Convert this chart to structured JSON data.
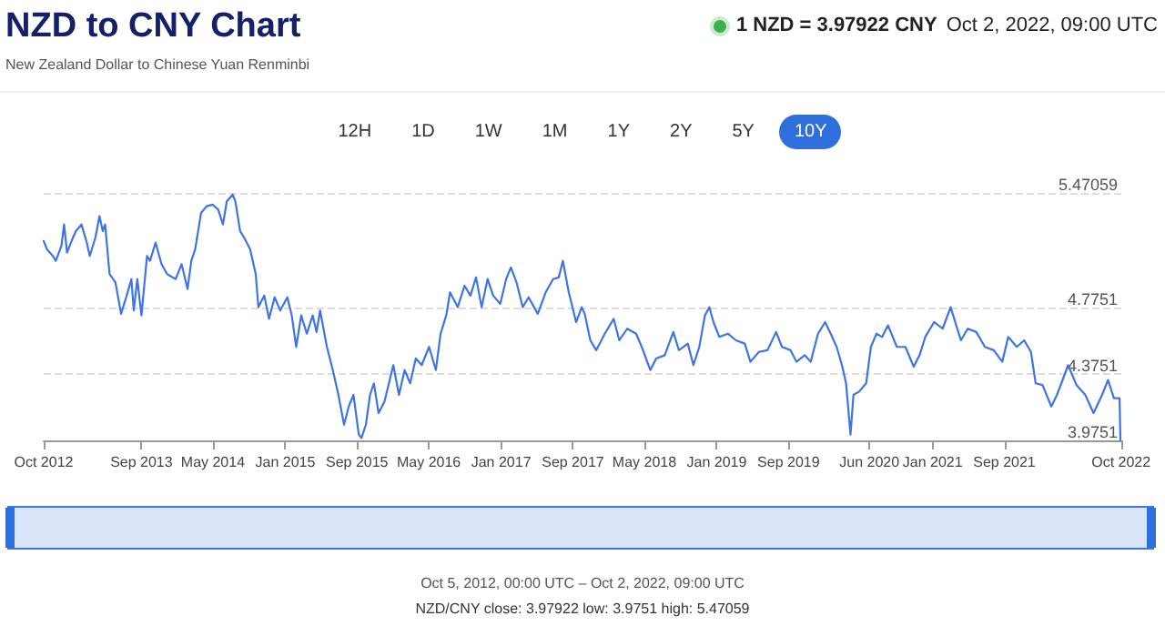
{
  "chart_data": {
    "type": "line",
    "title": "NZD to CNY Chart",
    "subtitle": "New Zealand Dollar to Chinese Yuan Renminbi",
    "annotations": [
      "1 NZD = 3.97922 CNY",
      "Oct 2, 2022, 09:00 UTC",
      "12H",
      "1D",
      "1W",
      "1M",
      "1Y",
      "2Y",
      "5Y",
      "10Y",
      "Oct 5, 2012, 00:00 UTC – Oct 2, 2022, 09:00 UTC",
      "NZD/CNY close: 3.97922 low: 3.9751 high: 5.47059"
    ],
    "x": [
      "2012-10-05",
      "2012-10-16",
      "2012-11-05",
      "2012-11-15",
      "2012-12-04",
      "2012-12-13",
      "2012-12-23",
      "2013-01-12",
      "2013-01-22",
      "2013-02-10",
      "2013-02-28",
      "2013-03-10",
      "2013-03-29",
      "2013-04-12",
      "2013-04-23",
      "2013-05-01",
      "2013-05-16",
      "2013-06-05",
      "2013-06-24",
      "2013-07-13",
      "2013-07-29",
      "2013-08-06",
      "2013-08-18",
      "2013-09-01",
      "2013-09-20",
      "2013-09-30",
      "2013-10-19",
      "2013-11-08",
      "2013-11-27",
      "2013-12-26",
      "2014-01-15",
      "2014-02-04",
      "2014-02-17",
      "2014-03-02",
      "2014-03-22",
      "2014-04-10",
      "2014-04-30",
      "2014-05-19",
      "2014-06-04",
      "2014-06-17",
      "2014-07-07",
      "2014-07-16",
      "2014-08-01",
      "2014-08-15",
      "2014-09-04",
      "2014-09-23",
      "2014-10-02",
      "2014-10-22",
      "2014-11-07",
      "2014-11-26",
      "2014-12-15",
      "2015-01-08",
      "2015-01-23",
      "2015-02-07",
      "2015-02-24",
      "2015-03-15",
      "2015-04-04",
      "2015-04-17",
      "2015-04-29",
      "2015-05-22",
      "2015-06-11",
      "2015-06-30",
      "2015-07-19",
      "2015-08-04",
      "2015-08-20",
      "2015-09-07",
      "2015-09-16",
      "2015-10-01",
      "2015-10-15",
      "2015-10-28",
      "2015-11-13",
      "2015-12-03",
      "2016-01-02",
      "2016-01-21",
      "2016-02-09",
      "2016-02-28",
      "2016-03-18",
      "2016-04-07",
      "2016-05-02",
      "2016-05-25",
      "2016-06-10",
      "2016-06-29",
      "2016-07-12",
      "2016-08-07",
      "2016-08-30",
      "2016-09-19",
      "2016-10-08",
      "2016-10-27",
      "2016-11-16",
      "2016-12-05",
      "2016-12-29",
      "2017-01-18",
      "2017-02-03",
      "2017-02-22",
      "2017-03-15",
      "2017-04-04",
      "2017-05-05",
      "2017-06-01",
      "2017-06-26",
      "2017-07-15",
      "2017-07-29",
      "2017-08-18",
      "2017-09-12",
      "2017-10-01",
      "2017-10-11",
      "2017-10-30",
      "2017-11-19",
      "2017-12-18",
      "2018-01-17",
      "2018-02-05",
      "2018-03-04",
      "2018-04-03",
      "2018-04-22",
      "2018-05-21",
      "2018-06-10",
      "2018-07-09",
      "2018-08-07",
      "2018-08-26",
      "2018-09-25",
      "2018-10-14",
      "2018-11-03",
      "2018-11-22",
      "2018-12-07",
      "2018-12-21",
      "2019-01-10",
      "2019-02-08",
      "2019-03-07",
      "2019-04-06",
      "2019-04-25",
      "2019-05-24",
      "2019-06-22",
      "2019-07-21",
      "2019-08-10",
      "2019-09-08",
      "2019-09-28",
      "2019-10-26",
      "2019-11-15",
      "2019-12-10",
      "2020-01-03",
      "2020-01-22",
      "2020-02-11",
      "2020-02-29",
      "2020-03-14",
      "2020-03-29",
      "2020-04-08",
      "2020-04-27",
      "2020-05-21",
      "2020-06-06",
      "2020-06-25",
      "2020-07-14",
      "2020-08-03",
      "2020-09-02",
      "2020-10-01",
      "2020-10-29",
      "2020-11-18",
      "2020-12-07",
      "2021-01-06",
      "2021-02-04",
      "2021-03-03",
      "2021-03-22",
      "2021-04-07",
      "2021-04-30",
      "2021-05-29",
      "2021-06-27",
      "2021-07-27",
      "2021-08-25",
      "2021-09-14",
      "2021-10-13",
      "2021-11-07",
      "2021-11-30",
      "2021-12-16",
      "2022-01-08",
      "2022-02-07",
      "2022-02-26",
      "2022-04-05",
      "2022-05-03",
      "2022-06-02",
      "2022-06-30",
      "2022-07-29",
      "2022-08-18",
      "2022-09-07",
      "2022-09-26",
      "2022-09-29",
      "2022-10-02"
    ],
    "series": [
      {
        "color": "#3f74e6",
        "values": [
          5.18,
          5.13,
          5.09,
          5.06,
          5.15,
          5.28,
          5.11,
          5.2,
          5.24,
          5.28,
          5.17,
          5.09,
          5.2,
          5.33,
          5.24,
          5.28,
          4.98,
          4.93,
          4.74,
          4.85,
          4.95,
          4.76,
          4.95,
          4.73,
          5.09,
          5.06,
          5.17,
          5.04,
          4.98,
          4.95,
          5.04,
          4.89,
          5.06,
          5.13,
          5.35,
          5.39,
          5.4,
          5.37,
          5.28,
          5.42,
          5.46,
          5.42,
          5.24,
          5.2,
          5.13,
          4.98,
          4.78,
          4.85,
          4.71,
          4.84,
          4.76,
          4.84,
          4.73,
          4.54,
          4.73,
          4.62,
          4.73,
          4.63,
          4.76,
          4.54,
          4.4,
          4.25,
          4.07,
          4.18,
          4.25,
          4.01,
          3.99,
          4.07,
          4.25,
          4.32,
          4.14,
          4.21,
          4.43,
          4.25,
          4.4,
          4.32,
          4.47,
          4.43,
          4.54,
          4.4,
          4.62,
          4.73,
          4.87,
          4.78,
          4.91,
          4.85,
          4.96,
          4.78,
          4.95,
          4.85,
          4.8,
          4.95,
          5.02,
          4.93,
          4.78,
          4.84,
          4.74,
          4.87,
          4.95,
          4.96,
          5.06,
          4.87,
          4.69,
          4.78,
          4.74,
          4.58,
          4.52,
          4.62,
          4.71,
          4.58,
          4.65,
          4.62,
          4.54,
          4.4,
          4.47,
          4.49,
          4.63,
          4.52,
          4.56,
          4.43,
          4.54,
          4.73,
          4.78,
          4.69,
          4.6,
          4.62,
          4.58,
          4.56,
          4.45,
          4.51,
          4.52,
          4.63,
          4.54,
          4.52,
          4.45,
          4.49,
          4.45,
          4.62,
          4.69,
          4.62,
          4.54,
          4.43,
          4.32,
          4.01,
          4.25,
          4.27,
          4.32,
          4.54,
          4.62,
          4.6,
          4.67,
          4.54,
          4.54,
          4.42,
          4.49,
          4.6,
          4.69,
          4.65,
          4.78,
          4.67,
          4.58,
          4.65,
          4.63,
          4.54,
          4.52,
          4.45,
          4.6,
          4.54,
          4.58,
          4.51,
          4.32,
          4.31,
          4.18,
          4.25,
          4.43,
          4.31,
          4.25,
          4.14,
          4.25,
          4.34,
          4.23,
          4.23,
          3.9751,
          3.97922
        ]
      }
    ],
    "xlim": [
      "2012-10-05",
      "2022-10-02"
    ],
    "xticks": [
      {
        "value": "2012-10-05",
        "label": "Oct 2012"
      },
      {
        "value": "2013-09-01",
        "label": "Sep 2013"
      },
      {
        "value": "2014-05-01",
        "label": "May 2014"
      },
      {
        "value": "2015-01-01",
        "label": "Jan 2015"
      },
      {
        "value": "2015-09-01",
        "label": "Sep 2015"
      },
      {
        "value": "2016-05-01",
        "label": "May 2016"
      },
      {
        "value": "2017-01-01",
        "label": "Jan 2017"
      },
      {
        "value": "2017-09-01",
        "label": "Sep 2017"
      },
      {
        "value": "2018-05-01",
        "label": "May 2018"
      },
      {
        "value": "2019-01-01",
        "label": "Jan 2019"
      },
      {
        "value": "2019-09-01",
        "label": "Sep 2019"
      },
      {
        "value": "2020-06-01",
        "label": "Jun 2020"
      },
      {
        "value": "2021-01-01",
        "label": "Jan 2021"
      },
      {
        "value": "2021-09-01",
        "label": "Sep 2021"
      },
      {
        "value": "2022-10-01",
        "label": "Oct 2022"
      }
    ],
    "ylim": [
      3.9751,
      5.47059
    ],
    "yticks": [
      3.9751,
      4.3751,
      4.7751,
      5.47059
    ],
    "grid": "y",
    "marker": "none",
    "line_style": "solid"
  }
}
